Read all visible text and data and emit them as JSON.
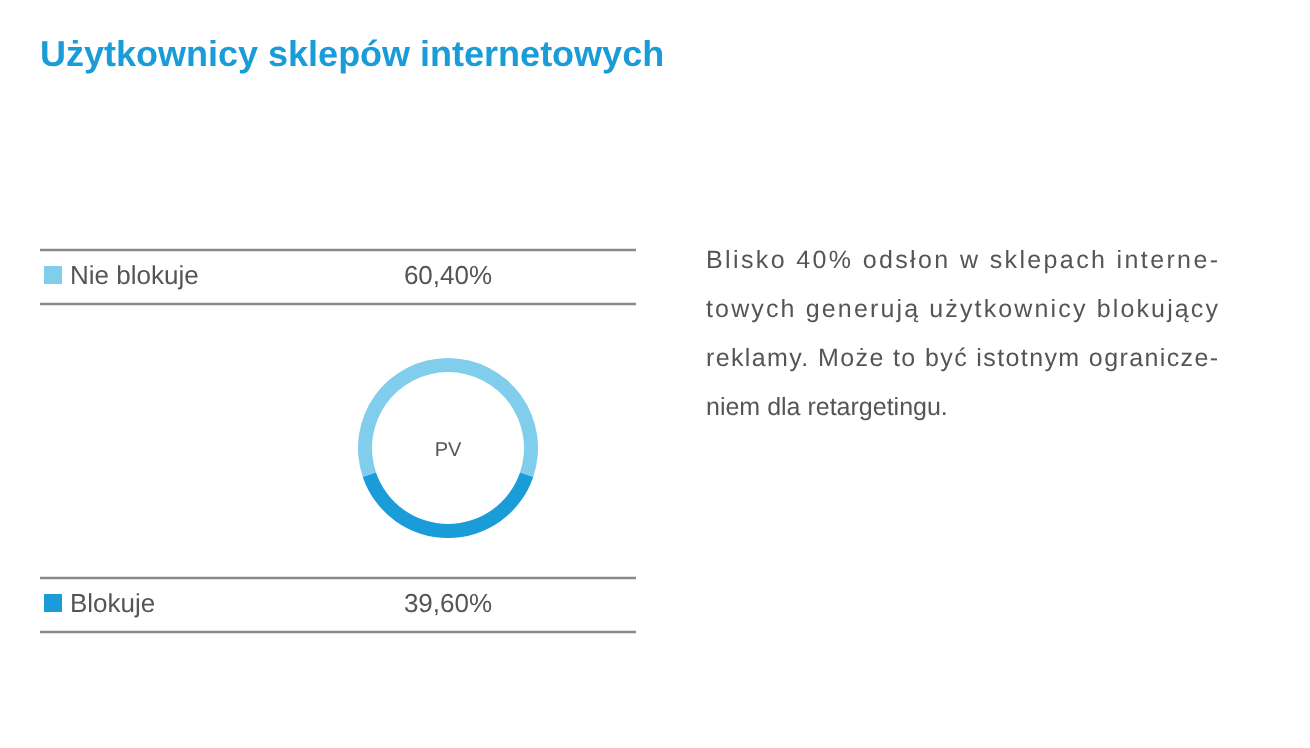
{
  "chart_data": {
    "type": "donut",
    "title": "Użytkownicy sklepów internetowych",
    "categories": [
      "Nie blokuje",
      "Blokuje"
    ],
    "values": [
      60.4,
      39.6
    ],
    "colors": [
      "#80cdec",
      "#1a9cd8"
    ],
    "value_labels": [
      "60,40%",
      "39,60%"
    ],
    "legend": "left",
    "annotations": [
      "PV",
      "Blisko 40% odsłon w sklepach interne-\ntowych generują użytkownicy blokujący\nreklamy. Może to być istotnym ogranicze-\nniem dla retargetingu."
    ]
  }
}
